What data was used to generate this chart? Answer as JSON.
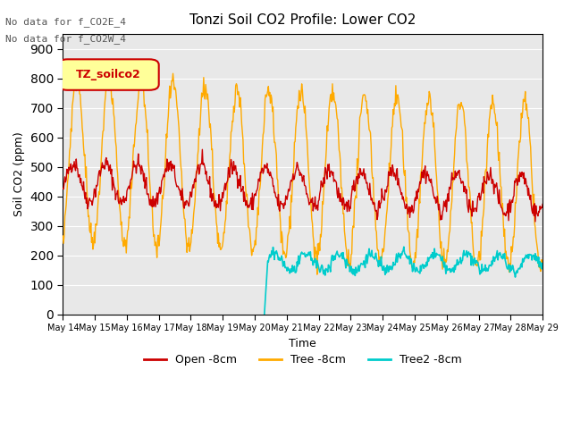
{
  "title": "Tonzi Soil CO2 Profile: Lower CO2",
  "ylabel": "Soil CO2 (ppm)",
  "xlabel": "Time",
  "annotation_lines": [
    "No data for f_CO2E_4",
    "No data for f_CO2W_4"
  ],
  "legend_box_label": "TZ_soilco2",
  "ylim": [
    0,
    950
  ],
  "yticks": [
    0,
    100,
    200,
    300,
    400,
    500,
    600,
    700,
    800,
    900
  ],
  "x_tick_labels": [
    "May 14",
    "May 15",
    "May 16",
    "May 17",
    "May 18",
    "May 19",
    "May 20",
    "May 21",
    "May 22",
    "May 23",
    "May 24",
    "May 25",
    "May 26",
    "May 27",
    "May 28",
    "May 29"
  ],
  "n_days": 15,
  "colors": {
    "open": "#cc0000",
    "tree": "#ffaa00",
    "tree2": "#00cccc",
    "bg_inner": "#e8e8e8",
    "legend_box_bg": "#ffff99",
    "legend_box_border": "#cc0000"
  },
  "line_labels": [
    "Open -8cm",
    "Tree -8cm",
    "Tree2 -8cm"
  ]
}
